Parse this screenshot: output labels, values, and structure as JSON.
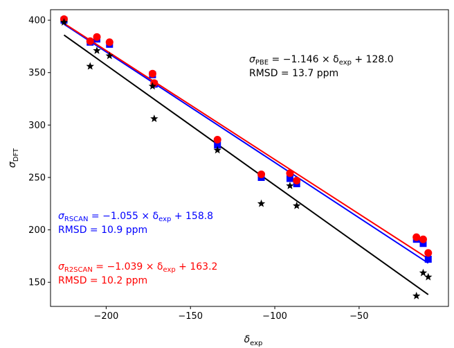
{
  "chart_data": {
    "type": "scatter",
    "title": "",
    "xlabel": "δexp",
    "ylabel": "σDFT",
    "xlim": [
      -233,
      3
    ],
    "ylim": [
      127,
      410
    ],
    "xticks": [
      -200,
      -150,
      -100,
      -50
    ],
    "yticks": [
      150,
      200,
      250,
      300,
      350,
      400
    ],
    "grid": false,
    "series": [
      {
        "name": "PBE",
        "marker": "star",
        "color": "#000000",
        "x": [
          -225,
          -209.5,
          -205.5,
          -198,
          -172.5,
          -171.5,
          -134,
          -108,
          -91,
          -87,
          -16,
          -12,
          -9
        ],
        "y": [
          398,
          356,
          371,
          366,
          337,
          306,
          276,
          225,
          242,
          223,
          137,
          159,
          155
        ]
      },
      {
        "name": "RSCAN",
        "marker": "square",
        "color": "#0000ff",
        "x": [
          -225,
          -209.5,
          -205.5,
          -198,
          -172.5,
          -171.5,
          -134,
          -108,
          -91,
          -87,
          -16,
          -12,
          -9
        ],
        "y": [
          400,
          379,
          382,
          377,
          348,
          339,
          281,
          250,
          249,
          244,
          191,
          187,
          172
        ]
      },
      {
        "name": "R2SCAN",
        "marker": "circle",
        "color": "#ff0000",
        "x": [
          -225,
          -209.5,
          -205.5,
          -198,
          -172.5,
          -171.5,
          -134,
          -108,
          -91,
          -87,
          -16,
          -12,
          -9
        ],
        "y": [
          401,
          380,
          384,
          379,
          349,
          340,
          286,
          253,
          254,
          247,
          193,
          191,
          178
        ]
      }
    ],
    "fits": [
      {
        "name": "PBE",
        "color": "#000000",
        "slope": -1.146,
        "intercept": 128.0,
        "x_range": [
          -225,
          -9
        ],
        "equation_prefix": "σ",
        "equation_sub": "PBE",
        "equation_rest": " = −1.146 × δ",
        "equation_sub2": "exp",
        "equation_end": " + 128.0",
        "rmsd": "RMSD = 13.7 ppm"
      },
      {
        "name": "RSCAN",
        "color": "#0000ff",
        "slope": -1.055,
        "intercept": 158.8,
        "x_range": [
          -225,
          -9
        ],
        "equation_prefix": "σ",
        "equation_sub": "RSCAN",
        "equation_rest": " = −1.055 × δ",
        "equation_sub2": "exp",
        "equation_end": " + 158.8",
        "rmsd": "RMSD = 10.9 ppm"
      },
      {
        "name": "R2SCAN",
        "color": "#ff0000",
        "slope": -1.039,
        "intercept": 163.2,
        "x_range": [
          -225,
          -9
        ],
        "equation_prefix": "σ",
        "equation_sub": "R2SCAN",
        "equation_rest": " = −1.039 × δ",
        "equation_sub2": "exp",
        "equation_end": " + 163.2",
        "rmsd": "RMSD = 10.2 ppm"
      }
    ]
  }
}
